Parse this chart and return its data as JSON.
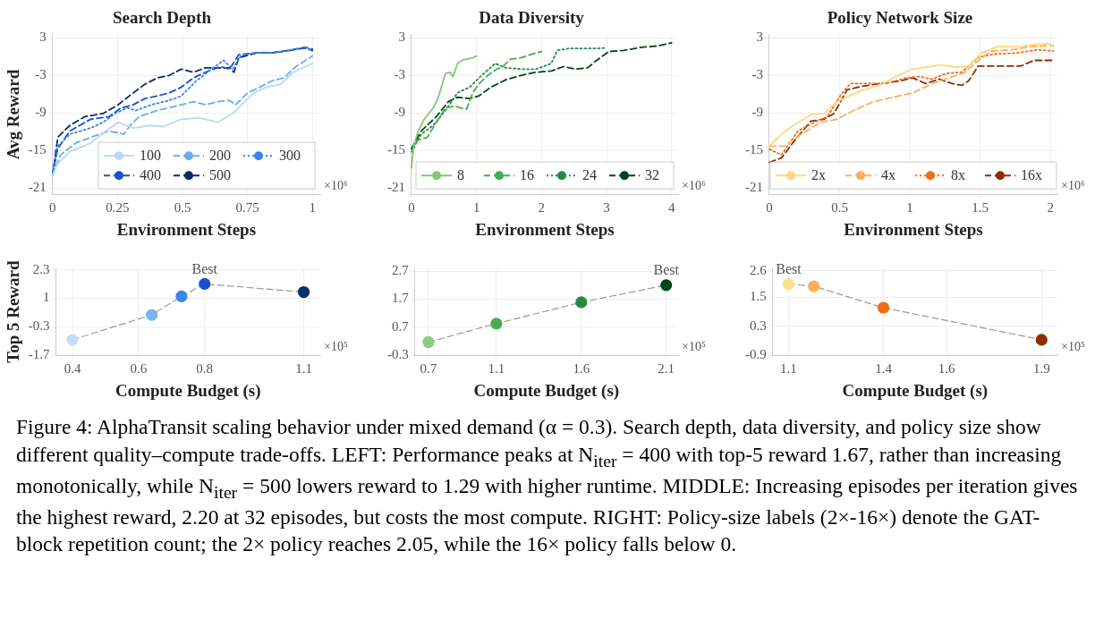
{
  "chart_data": [
    {
      "type": "line",
      "title": "Search Depth",
      "xlabel": "Environment Steps",
      "ylabel": "Avg Reward",
      "xlim": [
        0,
        1.03
      ],
      "ylim": [
        -22,
        3.5
      ],
      "xticks": [
        0,
        0.25,
        0.5,
        0.75,
        1
      ],
      "yticks": [
        -21,
        -15,
        -9,
        -3,
        3
      ],
      "grid": true,
      "legend": "bottom right",
      "marker": "none",
      "annotations": [
        "×10⁶"
      ],
      "series": [
        {
          "name": "100",
          "color": "#bdd7f2",
          "line_style": "solid",
          "x": [
            0,
            0.02,
            0.066,
            0.147,
            0.205,
            0.252,
            0.31,
            0.379,
            0.426,
            0.495,
            0.565,
            0.635,
            0.693,
            0.727,
            0.774,
            0.82,
            0.878,
            0.925,
            1
          ],
          "values": [
            -19,
            -17.1,
            -15.2,
            -13.8,
            -11.9,
            -10.5,
            -11.4,
            -11,
            -11.2,
            -10,
            -9.8,
            -10.5,
            -9.1,
            -7.7,
            -5.8,
            -4.9,
            -4.4,
            -2.5,
            -1.1
          ]
        },
        {
          "name": "200",
          "color": "#6aaef0",
          "line_style": "dashed",
          "x": [
            0,
            0.031,
            0.089,
            0.147,
            0.217,
            0.275,
            0.298,
            0.333,
            0.403,
            0.495,
            0.542,
            0.588,
            0.635,
            0.681,
            0.704,
            0.751,
            0.797,
            0.843,
            0.89,
            0.936,
            1
          ],
          "values": [
            -19,
            -15.7,
            -13.8,
            -12.9,
            -11.9,
            -12.4,
            -11,
            -9.6,
            -8.6,
            -7.7,
            -7.2,
            -7.7,
            -7.2,
            -7,
            -7.7,
            -5.8,
            -4.9,
            -3.9,
            -3.4,
            -1.6,
            0.1
          ]
        },
        {
          "name": "300",
          "color": "#3a80ee",
          "line_style": "dotted",
          "x": [
            0,
            0.02,
            0.066,
            0.147,
            0.194,
            0.24,
            0.287,
            0.321,
            0.379,
            0.449,
            0.495,
            0.553,
            0.611,
            0.658,
            0.693,
            0.727,
            0.785,
            0.843,
            0.913,
            0.971,
            1
          ],
          "values": [
            -18.5,
            -14.3,
            -12.4,
            -11.4,
            -10.5,
            -9.1,
            -8.2,
            -8.6,
            -7.7,
            -7,
            -6.3,
            -3.9,
            -2,
            -0.6,
            -2,
            0.3,
            0.6,
            0.6,
            1,
            1.5,
            0.9
          ]
        },
        {
          "name": "400",
          "color": "#1c50cc",
          "line_style": "dashed",
          "x": [
            0,
            0.02,
            0.066,
            0.147,
            0.217,
            0.263,
            0.31,
            0.356,
            0.403,
            0.449,
            0.495,
            0.542,
            0.588,
            0.646,
            0.681,
            0.716,
            0.785,
            0.843,
            0.913,
            0.971,
            1
          ],
          "values": [
            -19,
            -14.7,
            -11.9,
            -10,
            -9.6,
            -8.2,
            -7.7,
            -6.7,
            -6.3,
            -5.8,
            -4.9,
            -3.4,
            -2.5,
            -1.6,
            -2,
            0.3,
            0.6,
            0.6,
            1,
            1.5,
            1.2
          ]
        },
        {
          "name": "500",
          "color": "#0b2a66",
          "line_style": "dashed",
          "x": [
            0,
            0.02,
            0.066,
            0.124,
            0.194,
            0.252,
            0.31,
            0.356,
            0.403,
            0.449,
            0.495,
            0.542,
            0.588,
            0.635,
            0.681,
            0.698,
            0.716,
            0.785,
            0.843,
            0.913,
            0.971,
            1
          ],
          "values": [
            -19,
            -12.9,
            -11,
            -9.6,
            -9.1,
            -7.7,
            -5.8,
            -4.4,
            -3.4,
            -3,
            -2,
            -2.5,
            -1.8,
            -1.8,
            -1.8,
            -2.5,
            -0.2,
            0.6,
            0.6,
            1,
            1.4,
            1
          ]
        }
      ]
    },
    {
      "type": "line",
      "title": "Data Diversity",
      "xlabel": "Environment Steps",
      "xlim": [
        0,
        4.1
      ],
      "ylim": [
        -22,
        3.5
      ],
      "xticks": [
        0,
        1,
        2,
        3,
        4
      ],
      "yticks": [
        -21,
        -15,
        -9,
        -3,
        3
      ],
      "grid": true,
      "legend": "bottom",
      "marker": "none",
      "annotations": [
        "×10⁶"
      ],
      "series": [
        {
          "name": "8",
          "color": "#7ccb74",
          "line_style": "solid",
          "x": [
            0,
            0.033,
            0.102,
            0.195,
            0.265,
            0.335,
            0.405,
            0.474,
            0.521,
            0.591,
            0.637,
            0.707,
            0.777,
            0.847,
            0.94,
            1
          ],
          "values": [
            -17.8,
            -14.3,
            -11.9,
            -10,
            -9.1,
            -8.2,
            -6.7,
            -4.4,
            -2.7,
            -2.5,
            -3.2,
            -1.1,
            -0.6,
            -0.4,
            -0.2,
            0.1
          ]
        },
        {
          "name": "16",
          "color": "#45ad54",
          "line_style": "dashed",
          "x": [
            0,
            0.102,
            0.242,
            0.381,
            0.521,
            0.66,
            0.753,
            0.847,
            0.94,
            1.033,
            1.172,
            1.312,
            1.405,
            1.521,
            1.684,
            1.823,
            2
          ],
          "values": [
            -15.2,
            -13.3,
            -12.9,
            -10.5,
            -8.2,
            -7.9,
            -8.2,
            -8.4,
            -5.8,
            -4.4,
            -3,
            -2,
            -1.6,
            -0.4,
            -0.2,
            0.3,
            0.8
          ]
        },
        {
          "name": "24",
          "color": "#238b45",
          "line_style": "dotted",
          "x": [
            0,
            0.149,
            0.335,
            0.521,
            0.707,
            0.893,
            1.079,
            1.288,
            1.451,
            1.684,
            1.916,
            2.149,
            2.242,
            2.428,
            2.66,
            2.847,
            3
          ],
          "values": [
            -15.2,
            -12.4,
            -11,
            -8.6,
            -5.8,
            -4.9,
            -3,
            -1.1,
            -1.8,
            -2,
            -2,
            -1.1,
            1,
            1.3,
            1.3,
            1.3,
            1.4
          ]
        },
        {
          "name": "32",
          "color": "#00441b",
          "line_style": "dashed",
          "x": [
            0,
            0.149,
            0.381,
            0.567,
            0.707,
            0.893,
            1.033,
            1.219,
            1.451,
            1.684,
            1.916,
            2.149,
            2.335,
            2.521,
            2.707,
            2.847,
            3.033,
            3.265,
            3.544,
            3.777,
            4
          ],
          "values": [
            -14.7,
            -11.9,
            -9.6,
            -7.2,
            -6.5,
            -6.7,
            -6.3,
            -4.9,
            -3.7,
            -3,
            -2.5,
            -2.3,
            -1.6,
            -2,
            -1.8,
            -0.6,
            0.8,
            1,
            1.5,
            1.7,
            2.2
          ]
        }
      ]
    },
    {
      "type": "line",
      "title": "Policy Network Size",
      "xlabel": "Environment Steps",
      "xlim": [
        0,
        2.05
      ],
      "ylim": [
        -22,
        3.5
      ],
      "xticks": [
        0,
        0.5,
        1,
        1.5,
        2
      ],
      "yticks": [
        -21,
        -15,
        -9,
        -3,
        3
      ],
      "grid": true,
      "legend": "bottom",
      "marker": "none",
      "annotations": [
        "×10⁶"
      ],
      "series": [
        {
          "name": "2x",
          "color": "#fdd980",
          "line_style": "solid",
          "x": [
            0,
            0.086,
            0.203,
            0.296,
            0.39,
            0.483,
            0.576,
            0.67,
            0.786,
            0.926,
            1.02,
            1.113,
            1.23,
            1.323,
            1.417,
            1.51,
            1.627,
            1.767,
            1.883,
            1.977,
            2.02
          ],
          "values": [
            -14.3,
            -12.4,
            -10.5,
            -9.3,
            -9.1,
            -7.2,
            -6.2,
            -5.3,
            -4.6,
            -2.9,
            -2,
            -1.7,
            -1.3,
            -1.7,
            -1.5,
            0.6,
            1.6,
            1.6,
            1.9,
            2.1,
            1.6
          ]
        },
        {
          "name": "4x",
          "color": "#fdae5a",
          "line_style": "dashed",
          "x": [
            0,
            0.11,
            0.226,
            0.366,
            0.483,
            0.6,
            0.74,
            0.88,
            1.02,
            1.16,
            1.277,
            1.393,
            1.487,
            1.58,
            1.72,
            1.86,
            2.02
          ],
          "values": [
            -14.3,
            -14.3,
            -12.4,
            -10.5,
            -10,
            -8.6,
            -7.2,
            -6.5,
            -5.8,
            -4.3,
            -3.4,
            -2.5,
            -0.6,
            0.9,
            1.1,
            1.6,
            1.8
          ]
        },
        {
          "name": "8x",
          "color": "#f26b1a",
          "line_style": "dotted",
          "x": [
            0,
            0.086,
            0.203,
            0.32,
            0.413,
            0.506,
            0.576,
            0.693,
            0.833,
            0.973,
            1.067,
            1.16,
            1.253,
            1.37,
            1.487,
            1.603,
            1.767,
            1.907,
            2.02
          ],
          "values": [
            -14.8,
            -15.7,
            -11.9,
            -10.5,
            -9.6,
            -6.2,
            -4.3,
            -4.3,
            -4.3,
            -3.4,
            -3.2,
            -3.6,
            -2.7,
            -2.5,
            -0.1,
            0.4,
            0.6,
            1.1,
            0.9
          ]
        },
        {
          "name": "16x",
          "color": "#8c2d04",
          "line_style": "dashed",
          "x": [
            0,
            0.086,
            0.18,
            0.296,
            0.39,
            0.46,
            0.553,
            0.646,
            0.786,
            0.926,
            1.02,
            1.113,
            1.207,
            1.3,
            1.37,
            1.417,
            1.487,
            1.603,
            1.79,
            1.883,
            2.02
          ],
          "values": [
            -16.9,
            -16.2,
            -13.4,
            -10.3,
            -10,
            -9.1,
            -5.3,
            -4.8,
            -4.3,
            -3.9,
            -3.4,
            -4.3,
            -3.6,
            -4.3,
            -4.6,
            -3.9,
            -1.5,
            -1.5,
            -1.5,
            -0.6,
            -0.6
          ]
        }
      ]
    },
    {
      "type": "line",
      "xlabel": "Compute Budget (s)",
      "ylabel": "Top 5 Reward",
      "xlim": [
        0.35,
        1.15
      ],
      "ylim": [
        -1.667,
        2.4
      ],
      "xticks": [
        0.4,
        0.6,
        0.8,
        1.1
      ],
      "yticks": [
        {
          "value": -1.667,
          "label": "-1.7"
        },
        {
          "value": -0.333,
          "label": "-0.3"
        },
        1,
        {
          "value": 2.333,
          "label": "2.3"
        }
      ],
      "grid": true,
      "marker": "circle",
      "annotations": [
        "×10⁵",
        {
          "text": "Best",
          "x": 0.8,
          "y": 1.67
        }
      ],
      "series": [
        {
          "color": "#9a9a9a",
          "line_style": "dashed",
          "colors": [
            "#c5ddf8",
            "#78b6f2",
            "#3c86ec",
            "#1b4fcf",
            "#0b2e6e"
          ],
          "x": [
            0.4,
            0.64,
            0.73,
            0.8,
            1.1
          ],
          "values": [
            -0.94,
            0.22,
            1.09,
            1.67,
            1.29
          ]
        }
      ]
    },
    {
      "type": "line",
      "xlabel": "Compute Budget (s)",
      "xlim": [
        0.62,
        2.17
      ],
      "ylim": [
        -0.3,
        2.8
      ],
      "xticks": [
        0.7,
        1.1,
        1.6,
        2.1
      ],
      "yticks": [
        -0.3,
        0.7,
        1.7,
        2.7
      ],
      "grid": true,
      "marker": "circle",
      "annotations": [
        "×10⁵",
        {
          "text": "Best",
          "x": 2.1,
          "y": 2.2
        }
      ],
      "series": [
        {
          "color": "#9a9a9a",
          "line_style": "dashed",
          "colors": [
            "#86d07f",
            "#47ad55",
            "#238b45",
            "#00441b"
          ],
          "x": [
            0.7,
            1.1,
            1.6,
            2.1
          ],
          "values": [
            0.17,
            0.83,
            1.59,
            2.2
          ]
        }
      ]
    },
    {
      "type": "line",
      "xlabel": "Compute Budget (s)",
      "xlim": [
        1.05,
        1.95
      ],
      "ylim": [
        -0.9,
        2.7
      ],
      "xticks": [
        1.1,
        1.4,
        1.6,
        1.9
      ],
      "yticks": [
        -0.9,
        0.3,
        1.5,
        2.6
      ],
      "grid": true,
      "marker": "circle",
      "annotations": [
        "×10⁵",
        {
          "text": "Best",
          "x": 1.1,
          "y": 2.05
        }
      ],
      "series": [
        {
          "color": "#9a9a9a",
          "line_style": "dashed",
          "colors": [
            "#fde28a",
            "#fdb05a",
            "#f26b1a",
            "#8c2d04"
          ],
          "x": [
            1.1,
            1.18,
            1.4,
            1.9
          ],
          "values": [
            2.05,
            1.96,
            1.07,
            -0.26
          ]
        }
      ]
    },
    {
      "type": "other",
      "annotations": [
        "Figure 4: AlphaTransit scaling behavior under mixed demand (α = 0.3). Search depth, data diversity, and policy size show different quality–compute trade-offs. LEFT: Performance peaks at N$_{iter}$ = 400 with top-5 reward 1.67, rather than increasing monotonically, while N$_{iter}$ = 500 lowers reward to 1.29 with higher runtime. MIDDLE: Increasing episodes per iteration gives the highest reward, 2.20 at 32 episodes, but costs the most compute. RIGHT: Policy-size labels (2×-16×) denote the GAT-block repetition count; the 2× policy reaches 2.05, while the 16× policy falls below 0."
      ]
    }
  ]
}
